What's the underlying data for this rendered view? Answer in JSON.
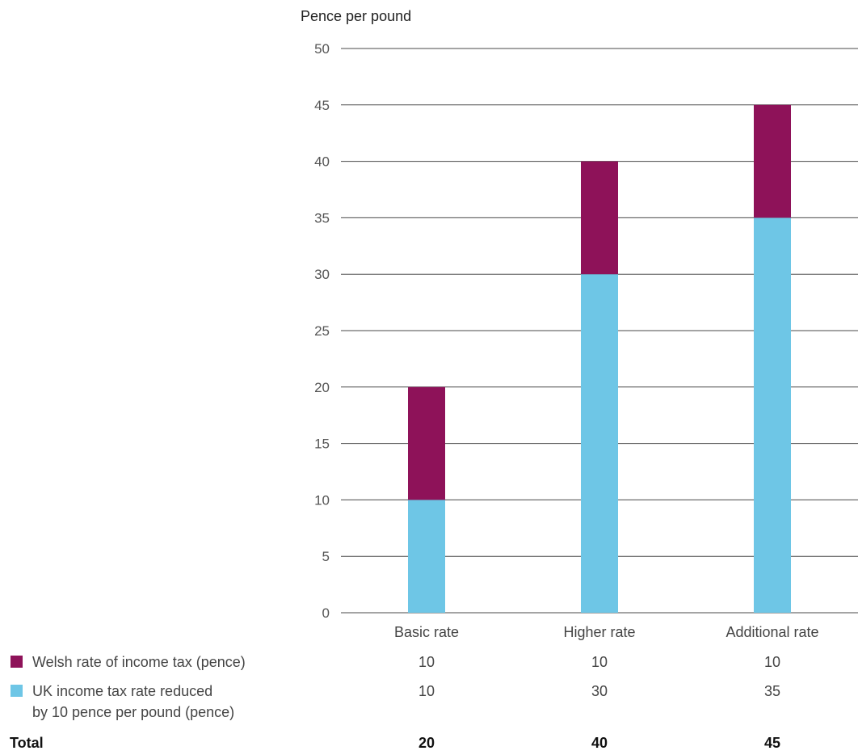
{
  "chart_data": {
    "type": "bar",
    "stacked": true,
    "ylabel": "Pence per pound",
    "ylim": [
      0,
      50
    ],
    "yticks": [
      0,
      5,
      10,
      15,
      20,
      25,
      30,
      35,
      40,
      45,
      50
    ],
    "grid": true,
    "categories": [
      "Basic rate",
      "Higher rate",
      "Additional rate"
    ],
    "series": [
      {
        "name": "UK income tax rate reduced by 10 pence per pound (pence)",
        "name_lines": [
          "UK income tax rate reduced",
          "by 10 pence per pound (pence)"
        ],
        "values": [
          10,
          30,
          35
        ],
        "color": "#6ec6e6"
      },
      {
        "name": "Welsh rate of income tax (pence)",
        "name_lines": [
          "Welsh rate of income tax (pence)"
        ],
        "values": [
          10,
          10,
          10
        ],
        "color": "#8e1259"
      }
    ],
    "legend_order": [
      1,
      0
    ],
    "legend_placement": "bottom-left",
    "totals_label": "Total",
    "totals": [
      20,
      40,
      45
    ]
  }
}
